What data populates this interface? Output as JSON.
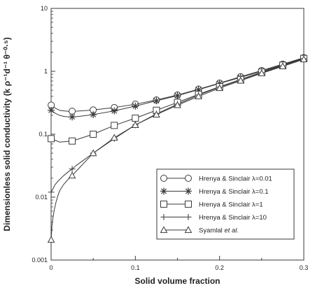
{
  "chart_data": {
    "type": "line",
    "xlabel": "Solid volume fraction",
    "ylabel": "Dimensionless solid conductivity  (k ρ⁻¹d⁻¹ θ⁻⁰·⁵)",
    "xlim": [
      0,
      0.3
    ],
    "ylim": [
      0.001,
      10
    ],
    "yscale": "log",
    "x_ticks": [
      "0",
      "0.1",
      "0.2",
      "0.3"
    ],
    "y_ticks": [
      "0.001",
      "0.01",
      "0.1",
      "1",
      "10"
    ],
    "x_tick_values": [
      0,
      0.1,
      0.2,
      0.3
    ],
    "y_tick_values": [
      0.001,
      0.01,
      0.1,
      1,
      10
    ],
    "grid": false,
    "legend_position": "bottom-right",
    "series": [
      {
        "name": "Hrenya & Sinclair λ=0.01",
        "marker": "circle",
        "x": [
          0.0001,
          0.005,
          0.01,
          0.015,
          0.02,
          0.025,
          0.03,
          0.04,
          0.05,
          0.075,
          0.1,
          0.125,
          0.15,
          0.175,
          0.2,
          0.225,
          0.25,
          0.275,
          0.3
        ],
        "y": [
          0.29,
          0.26,
          0.24,
          0.235,
          0.232,
          0.232,
          0.233,
          0.237,
          0.243,
          0.265,
          0.3,
          0.35,
          0.42,
          0.52,
          0.65,
          0.82,
          1.03,
          1.3,
          1.65
        ],
        "marker_x": [
          0.0001,
          0.025,
          0.05,
          0.075,
          0.1,
          0.125,
          0.15,
          0.175,
          0.2,
          0.225,
          0.25,
          0.275,
          0.3
        ]
      },
      {
        "name": "Hrenya & Sinclair λ=0.1",
        "marker": "asterisk",
        "x": [
          0.0001,
          0.005,
          0.01,
          0.015,
          0.02,
          0.025,
          0.03,
          0.04,
          0.05,
          0.075,
          0.1,
          0.125,
          0.15,
          0.175,
          0.2,
          0.225,
          0.25,
          0.275,
          0.3
        ],
        "y": [
          0.24,
          0.215,
          0.2,
          0.192,
          0.189,
          0.188,
          0.19,
          0.197,
          0.205,
          0.235,
          0.28,
          0.34,
          0.41,
          0.51,
          0.64,
          0.8,
          1.0,
          1.27,
          1.62
        ],
        "marker_x": [
          0.0001,
          0.025,
          0.05,
          0.075,
          0.1,
          0.125,
          0.15,
          0.175,
          0.2,
          0.225,
          0.25,
          0.275,
          0.3
        ]
      },
      {
        "name": "Hrenya & Sinclair λ=1",
        "marker": "square",
        "x": [
          0.0001,
          0.01,
          0.025,
          0.05,
          0.075,
          0.1,
          0.125,
          0.15,
          0.175,
          0.2,
          0.225,
          0.25,
          0.275,
          0.3
        ],
        "y": [
          0.085,
          0.075,
          0.078,
          0.1,
          0.138,
          0.18,
          0.24,
          0.32,
          0.43,
          0.57,
          0.74,
          0.97,
          1.25,
          1.6
        ],
        "marker_x": [
          0.0001,
          0.025,
          0.05,
          0.075,
          0.1,
          0.125,
          0.15,
          0.175,
          0.2,
          0.225,
          0.25,
          0.275,
          0.3
        ]
      },
      {
        "name": "Hrenya & Sinclair λ=10",
        "marker": "plus",
        "x": [
          0.0001,
          0.005,
          0.01,
          0.015,
          0.02,
          0.025,
          0.03,
          0.04,
          0.05,
          0.075,
          0.1,
          0.125,
          0.15,
          0.175,
          0.2,
          0.225,
          0.25,
          0.275,
          0.3
        ],
        "y": [
          0.012,
          0.016,
          0.019,
          0.022,
          0.025,
          0.028,
          0.032,
          0.04,
          0.05,
          0.085,
          0.14,
          0.21,
          0.3,
          0.42,
          0.56,
          0.73,
          0.95,
          1.22,
          1.58
        ],
        "marker_x": [
          0.0001,
          0.025,
          0.05,
          0.075,
          0.1,
          0.125,
          0.15,
          0.175,
          0.2,
          0.225,
          0.25,
          0.275,
          0.3
        ]
      },
      {
        "name": "Syamlal et al.",
        "marker": "triangle",
        "x": [
          0.0001,
          0.001,
          0.002,
          0.004,
          0.006,
          0.008,
          0.01,
          0.015,
          0.02,
          0.025,
          0.03,
          0.04,
          0.05,
          0.075,
          0.1,
          0.125,
          0.15,
          0.175,
          0.2,
          0.225,
          0.25,
          0.275,
          0.3
        ],
        "y": [
          0.0021,
          0.0035,
          0.0045,
          0.0065,
          0.0085,
          0.0105,
          0.0125,
          0.016,
          0.019,
          0.022,
          0.026,
          0.036,
          0.05,
          0.088,
          0.14,
          0.205,
          0.29,
          0.4,
          0.54,
          0.71,
          0.93,
          1.2,
          1.55
        ],
        "marker_x": [
          0.0001,
          0.025,
          0.05,
          0.075,
          0.1,
          0.125,
          0.15,
          0.175,
          0.2,
          0.225,
          0.25,
          0.275,
          0.3
        ]
      }
    ],
    "legend": [
      {
        "prefix": "Hrenya & Sinclair ",
        "value": "λ=0.01",
        "suffix": ""
      },
      {
        "prefix": "Hrenya & Sinclair ",
        "value": "λ=0.1",
        "suffix": ""
      },
      {
        "prefix": "Hrenya & Sinclair ",
        "value": "λ=1",
        "suffix": ""
      },
      {
        "prefix": "Hrenya & Sinclair ",
        "value": "λ=10",
        "suffix": ""
      },
      {
        "prefix": "Syamlal ",
        "value": "et al.",
        "suffix": ""
      }
    ]
  }
}
